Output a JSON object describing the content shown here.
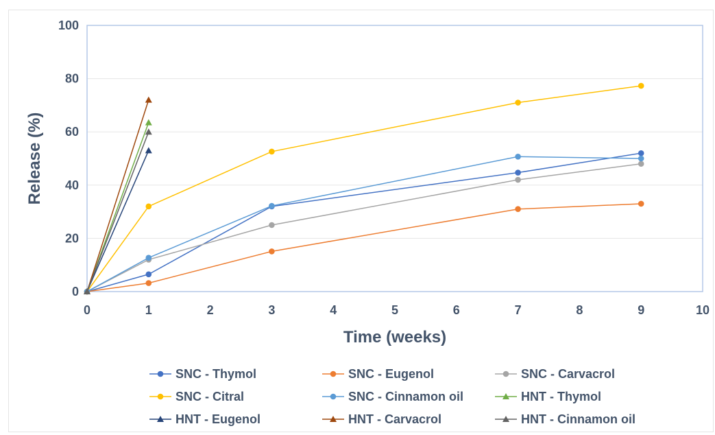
{
  "chart_data": {
    "type": "line",
    "title": "",
    "xlabel": "Time (weeks)",
    "ylabel": "Release (%)",
    "xlim": [
      0,
      10
    ],
    "ylim": [
      0,
      100
    ],
    "xticks": [
      0,
      1,
      2,
      3,
      4,
      5,
      6,
      7,
      8,
      9,
      10
    ],
    "yticks": [
      0,
      20,
      40,
      60,
      80,
      100
    ],
    "grid": "horizontal",
    "legend_position": "bottom",
    "series": [
      {
        "name": "SNC - Thymol",
        "color": "#4472c4",
        "marker": "circle",
        "x": [
          0,
          1,
          3,
          7,
          9
        ],
        "y": [
          0,
          6.5,
          32,
          44.7,
          52
        ]
      },
      {
        "name": "SNC - Eugenol",
        "color": "#ed7d31",
        "marker": "circle",
        "x": [
          0,
          1,
          3,
          7,
          9
        ],
        "y": [
          0,
          3.2,
          15.1,
          31,
          33
        ]
      },
      {
        "name": "SNC - Carvacrol",
        "color": "#a5a5a5",
        "marker": "circle",
        "x": [
          0,
          1,
          3,
          7,
          9
        ],
        "y": [
          0,
          12,
          25,
          42,
          48
        ]
      },
      {
        "name": "SNC - Citral",
        "color": "#ffc000",
        "marker": "circle",
        "x": [
          0,
          1,
          3,
          7,
          9
        ],
        "y": [
          0,
          32,
          52.6,
          71,
          77.3
        ]
      },
      {
        "name": "SNC - Cinnamon oil",
        "color": "#5b9bd5",
        "marker": "circle",
        "x": [
          0,
          1,
          3,
          7,
          9
        ],
        "y": [
          0,
          12.7,
          32.2,
          50.7,
          50
        ]
      },
      {
        "name": "HNT - Thymol",
        "color": "#70ad47",
        "marker": "triangle",
        "x": [
          0,
          1
        ],
        "y": [
          0,
          63.5
        ]
      },
      {
        "name": "HNT - Eugenol",
        "color": "#264478",
        "marker": "triangle",
        "x": [
          0,
          1
        ],
        "y": [
          0,
          53
        ]
      },
      {
        "name": "HNT - Carvacrol",
        "color": "#9e480e",
        "marker": "triangle",
        "x": [
          0,
          1
        ],
        "y": [
          0,
          72
        ]
      },
      {
        "name": "HNT - Cinnamon oil",
        "color": "#636363",
        "marker": "triangle",
        "x": [
          0,
          1
        ],
        "y": [
          0,
          60
        ]
      }
    ]
  }
}
